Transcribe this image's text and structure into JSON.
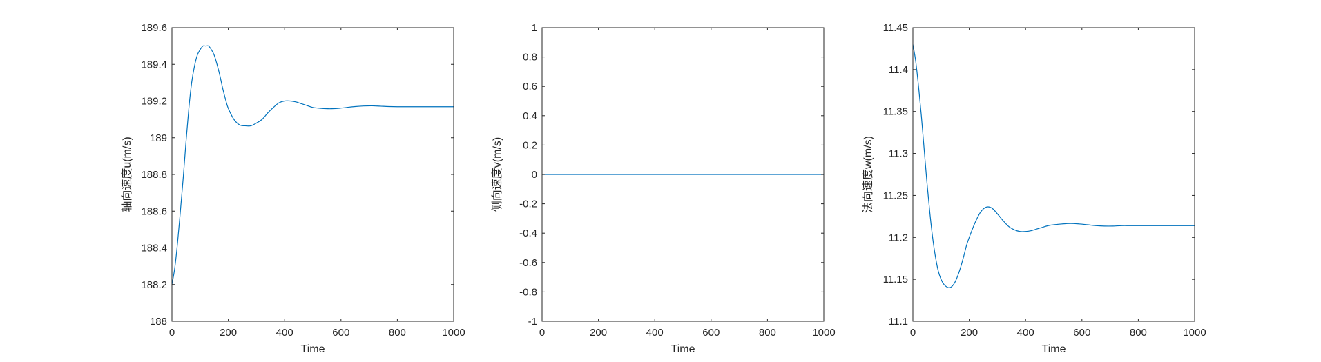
{
  "figure": {
    "background": "#ffffff",
    "axes_color": "#262626",
    "line_color": "#0072BD"
  },
  "chart_data": [
    {
      "type": "line",
      "xlabel": "Time",
      "ylabel": "轴向速度u(m/s)",
      "xlim": [
        0,
        1000
      ],
      "ylim": [
        188,
        189.6
      ],
      "xticks": [
        0,
        200,
        400,
        600,
        800,
        1000
      ],
      "yticks": [
        188,
        188.2,
        188.4,
        188.6,
        188.8,
        189,
        189.2,
        189.4,
        189.6
      ],
      "xtick_labels": [
        "0",
        "200",
        "400",
        "600",
        "800",
        "1000"
      ],
      "ytick_labels": [
        "188",
        "188.2",
        "188.4",
        "188.6",
        "188.8",
        "189",
        "189.2",
        "189.4",
        "189.6"
      ],
      "grid": false,
      "series": [
        {
          "color": "#0072BD",
          "x": [
            0,
            10,
            20,
            30,
            40,
            50,
            60,
            70,
            80,
            90,
            100,
            110,
            120,
            130,
            140,
            150,
            160,
            170,
            180,
            190,
            200,
            220,
            240,
            260,
            280,
            300,
            320,
            340,
            360,
            380,
            400,
            420,
            440,
            460,
            480,
            500,
            530,
            560,
            590,
            620,
            650,
            680,
            710,
            740,
            770,
            800,
            850,
            900,
            950,
            1000
          ],
          "y": [
            188.2,
            188.29,
            188.43,
            188.6,
            188.78,
            188.98,
            189.16,
            189.3,
            189.39,
            189.45,
            189.48,
            189.5,
            189.5,
            189.5,
            189.48,
            189.45,
            189.4,
            189.34,
            189.27,
            189.21,
            189.16,
            189.1,
            189.07,
            189.065,
            189.065,
            189.08,
            189.1,
            189.135,
            189.165,
            189.19,
            189.2,
            189.2,
            189.195,
            189.185,
            189.175,
            189.165,
            189.16,
            189.158,
            189.16,
            189.165,
            189.17,
            189.173,
            189.174,
            189.172,
            189.17,
            189.169,
            189.169,
            189.169,
            189.169,
            189.169
          ]
        }
      ]
    },
    {
      "type": "line",
      "xlabel": "Time",
      "ylabel": "侧向速度v(m/s)",
      "xlim": [
        0,
        1000
      ],
      "ylim": [
        -1,
        1
      ],
      "xticks": [
        0,
        200,
        400,
        600,
        800,
        1000
      ],
      "yticks": [
        -1,
        -0.8,
        -0.6,
        -0.4,
        -0.2,
        0,
        0.2,
        0.4,
        0.6,
        0.8,
        1
      ],
      "xtick_labels": [
        "0",
        "200",
        "400",
        "600",
        "800",
        "1000"
      ],
      "ytick_labels": [
        "-1",
        "-0.8",
        "-0.6",
        "-0.4",
        "-0.2",
        "0",
        "0.2",
        "0.4",
        "0.6",
        "0.8",
        "1"
      ],
      "grid": false,
      "series": [
        {
          "color": "#0072BD",
          "x": [
            0,
            1000
          ],
          "y": [
            0,
            0
          ]
        }
      ]
    },
    {
      "type": "line",
      "xlabel": "Time",
      "ylabel": "法向速度w(m/s)",
      "xlim": [
        0,
        1000
      ],
      "ylim": [
        11.1,
        11.45
      ],
      "xticks": [
        0,
        200,
        400,
        600,
        800,
        1000
      ],
      "yticks": [
        11.1,
        11.15,
        11.2,
        11.25,
        11.3,
        11.35,
        11.4,
        11.45
      ],
      "xtick_labels": [
        "0",
        "200",
        "400",
        "600",
        "800",
        "1000"
      ],
      "ytick_labels": [
        "11.1",
        "11.15",
        "11.2",
        "11.25",
        "11.3",
        "11.35",
        "11.4",
        "11.45"
      ],
      "grid": false,
      "series": [
        {
          "color": "#0072BD",
          "x": [
            0,
            10,
            20,
            30,
            40,
            50,
            60,
            70,
            80,
            90,
            100,
            110,
            120,
            130,
            140,
            150,
            160,
            170,
            180,
            190,
            200,
            220,
            240,
            260,
            280,
            300,
            320,
            340,
            360,
            380,
            400,
            420,
            440,
            460,
            480,
            500,
            530,
            560,
            590,
            620,
            650,
            680,
            710,
            740,
            770,
            800,
            850,
            900,
            950,
            1000
          ],
          "y": [
            11.43,
            11.41,
            11.38,
            11.345,
            11.305,
            11.265,
            11.23,
            11.2,
            11.177,
            11.16,
            11.15,
            11.144,
            11.141,
            11.14,
            11.142,
            11.147,
            11.155,
            11.165,
            11.177,
            11.19,
            11.2,
            11.217,
            11.23,
            11.236,
            11.235,
            11.228,
            11.22,
            11.213,
            11.209,
            11.207,
            11.207,
            11.208,
            11.21,
            11.212,
            11.214,
            11.215,
            11.216,
            11.2165,
            11.216,
            11.215,
            11.214,
            11.2135,
            11.2135,
            11.214,
            11.214,
            11.214,
            11.214,
            11.214,
            11.214,
            11.214
          ]
        }
      ]
    }
  ]
}
